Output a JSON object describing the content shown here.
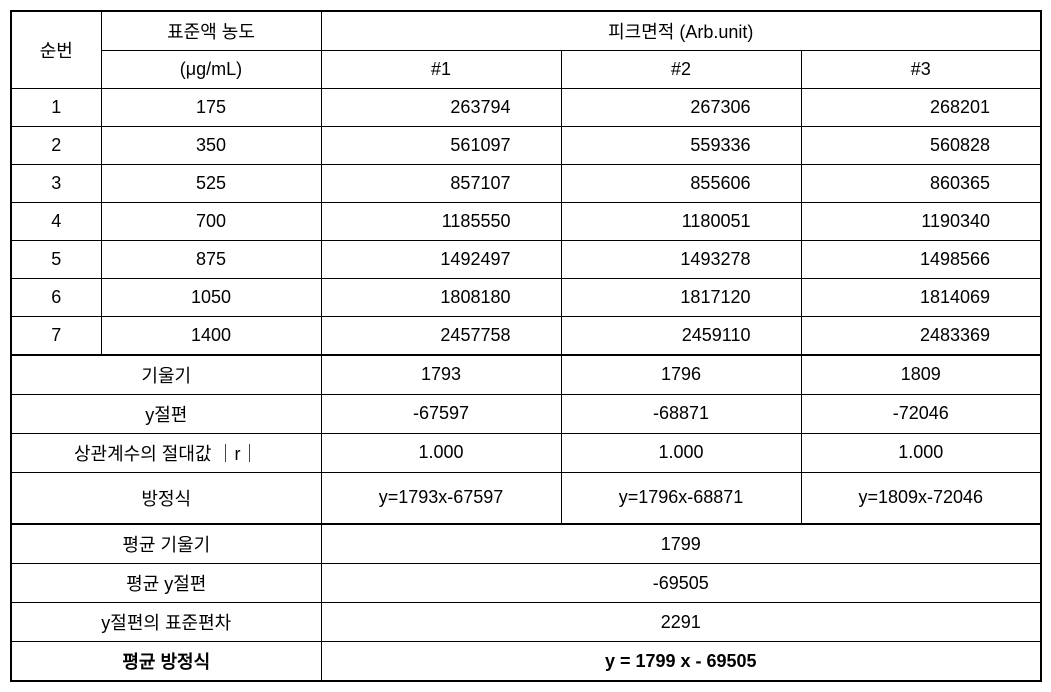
{
  "headers": {
    "no": "순번",
    "conc": "표준액 농도",
    "conc_unit": "(μg/mL)",
    "peak": "피크면적 (Arb.unit)",
    "col1": "#1",
    "col2": "#2",
    "col3": "#3"
  },
  "rows": [
    {
      "no": "1",
      "conc": "175",
      "v1": "263794",
      "v2": "267306",
      "v3": "268201"
    },
    {
      "no": "2",
      "conc": "350",
      "v1": "561097",
      "v2": "559336",
      "v3": "560828"
    },
    {
      "no": "3",
      "conc": "525",
      "v1": "857107",
      "v2": "855606",
      "v3": "860365"
    },
    {
      "no": "4",
      "conc": "700",
      "v1": "1185550",
      "v2": "1180051",
      "v3": "1190340"
    },
    {
      "no": "5",
      "conc": "875",
      "v1": "1492497",
      "v2": "1493278",
      "v3": "1498566"
    },
    {
      "no": "6",
      "conc": "1050",
      "v1": "1808180",
      "v2": "1817120",
      "v3": "1814069"
    },
    {
      "no": "7",
      "conc": "1400",
      "v1": "2457758",
      "v2": "2459110",
      "v3": "2483369"
    }
  ],
  "stats": {
    "slope_label": "기울기",
    "slope": {
      "v1": "1793",
      "v2": "1796",
      "v3": "1809"
    },
    "intercept_label": "y절편",
    "intercept": {
      "v1": "-67597",
      "v2": "-68871",
      "v3": "-72046"
    },
    "corr_label": "상관계수의 절대값 ｜r｜",
    "corr": {
      "v1": "1.000",
      "v2": "1.000",
      "v3": "1.000"
    },
    "eq_label": "방정식",
    "eq": {
      "v1": "y=1793x-67597",
      "v2": "y=1796x-68871",
      "v3": "y=1809x-72046"
    }
  },
  "summary": {
    "avg_slope_label": "평균 기울기",
    "avg_slope": "1799",
    "avg_intercept_label": "평균 y절편",
    "avg_intercept": "-69505",
    "sd_intercept_label": "y절편의 표준편차",
    "sd_intercept": "2291",
    "avg_eq_label": "평균 방정식",
    "avg_eq": "y  =  1799  x  -  69505"
  },
  "styling": {
    "background_color": "#ffffff",
    "border_color": "#000000",
    "normal_border_width": 1,
    "thick_border_width": 2.5,
    "font_size": 18,
    "font_family": "Malgun Gothic",
    "text_color": "#000000"
  }
}
